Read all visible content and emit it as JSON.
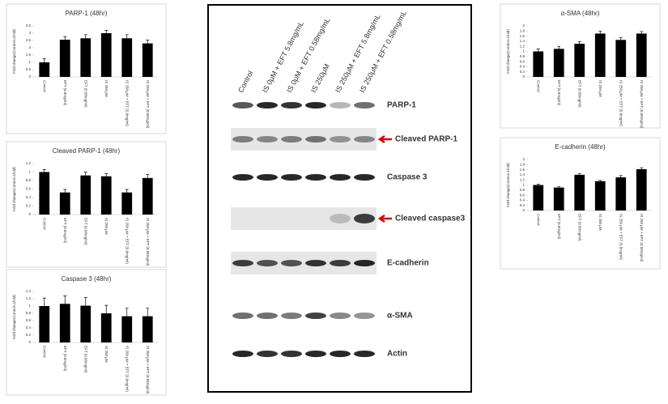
{
  "chart_data": [
    {
      "type": "bar",
      "title": "PARP-1 (48hr)",
      "y_label": "Fold change(Control=1fold)",
      "categories": [
        "Control",
        "EFT (5.8mg/ml)",
        "EFT (0.58mg/ml)",
        "IS 250 μM",
        "IS 250 μM + EFT (5.8mg/ml)",
        "IS 250 μM + EFT (0.58mg/ml)"
      ],
      "values": [
        1,
        2.55,
        2.65,
        3.0,
        2.65,
        2.3
      ],
      "errors": [
        0.25,
        0.22,
        0.25,
        0.2,
        0.25,
        0.22
      ],
      "color": "#000000",
      "ylim": [
        0,
        3.5
      ],
      "yticks": [
        0,
        0.5,
        1,
        1.5,
        2,
        2.5,
        3,
        3.5
      ]
    },
    {
      "type": "bar",
      "title": "Cleaved PARP-1 (48hr)",
      "y_label": "Fold change(Control=1fold)",
      "categories": [
        "Control",
        "EFT (5.8mg/ml)",
        "EFT (0.58mg/ml)",
        "IS 250 μM",
        "IS 250 μM + EFT (5.8mg/ml)",
        "IS 250 μM + EFT (0.58mg/ml)"
      ],
      "values": [
        1.0,
        0.52,
        0.92,
        0.9,
        0.52,
        0.86
      ],
      "errors": [
        0.06,
        0.07,
        0.08,
        0.06,
        0.07,
        0.08
      ],
      "color": "#000000",
      "ylim": [
        0,
        1.2
      ],
      "yticks": [
        0,
        0.2,
        0.4,
        0.6,
        0.8,
        1,
        1.2
      ]
    },
    {
      "type": "bar",
      "title": "Caspase 3  (48hr)",
      "y_label": "Fold change(Control=1fold)",
      "categories": [
        "Control",
        "EFT (5.8mg/ml)",
        "EFT (0.58mg/ml)",
        "IS 250 μM",
        "IS 250 μM + EFT (5.8mg/ml)",
        "IS 250 μM + EFT (0.58mg/ml)"
      ],
      "values": [
        1.0,
        1.06,
        1.01,
        0.8,
        0.72,
        0.72
      ],
      "errors": [
        0.22,
        0.22,
        0.22,
        0.22,
        0.22,
        0.22
      ],
      "color": "#000000",
      "ylim": [
        0,
        1.4
      ],
      "yticks": [
        0,
        0.2,
        0.4,
        0.6,
        0.8,
        1,
        1.2,
        1.4
      ]
    },
    {
      "type": "bar",
      "title": "α-SMA  (48hr)",
      "y_label": "Fold change(Control=1fold)",
      "categories": [
        "Control",
        "EFT (5.8mg/ml)",
        "EFT (0.58mg/ml)",
        "IS 250 μM",
        "IS 250 μM + EFT (5.8mg/ml)",
        "IS 250 μM + EFT (0.58mg/ml)"
      ],
      "values": [
        1.0,
        1.1,
        1.3,
        1.7,
        1.45,
        1.7
      ],
      "errors": [
        0.1,
        0.1,
        0.08,
        0.1,
        0.1,
        0.08
      ],
      "color": "#000000",
      "ylim": [
        0,
        2
      ],
      "yticks": [
        0,
        0.2,
        0.4,
        0.6,
        0.8,
        1,
        1.2,
        1.4,
        1.6,
        1.8,
        2
      ]
    },
    {
      "type": "bar",
      "title": "E-cadherin (48hr)",
      "y_label": "Fold change(Control=1fold)",
      "categories": [
        "Control",
        "EFT (5.8mg/ml)",
        "EFT (0.58mg/ml)",
        "IS 250 μM",
        "IS 250 μM + EFT (5.8mg/ml)",
        "IS 250 μM + EFT (0.58mg/ml)"
      ],
      "values": [
        1.0,
        0.9,
        1.4,
        1.15,
        1.3,
        1.62
      ],
      "errors": [
        0.03,
        0.03,
        0.05,
        0.03,
        0.07,
        0.06
      ],
      "color": "#000000",
      "ylim": [
        0,
        2
      ],
      "yticks": [
        0,
        0.2,
        0.4,
        0.6,
        0.8,
        1,
        1.2,
        1.4,
        1.6,
        1.8,
        2
      ]
    }
  ],
  "blot": {
    "lanes": [
      "Control",
      "IS 0μM + EFT 5.8mg/mL",
      "IS 0μM + EFT  0.58mg/mL",
      "IS 250μM",
      "IS 250μM + EFT 5.8mg/mL",
      "IS 250μM + EFT 0.58mg/mL"
    ],
    "rows": [
      "PARP-1",
      "Cleaved PARP-1",
      "Caspase 3",
      "Cleaved caspase3",
      "E-cadherin",
      "α-SMA",
      "Actin"
    ]
  }
}
